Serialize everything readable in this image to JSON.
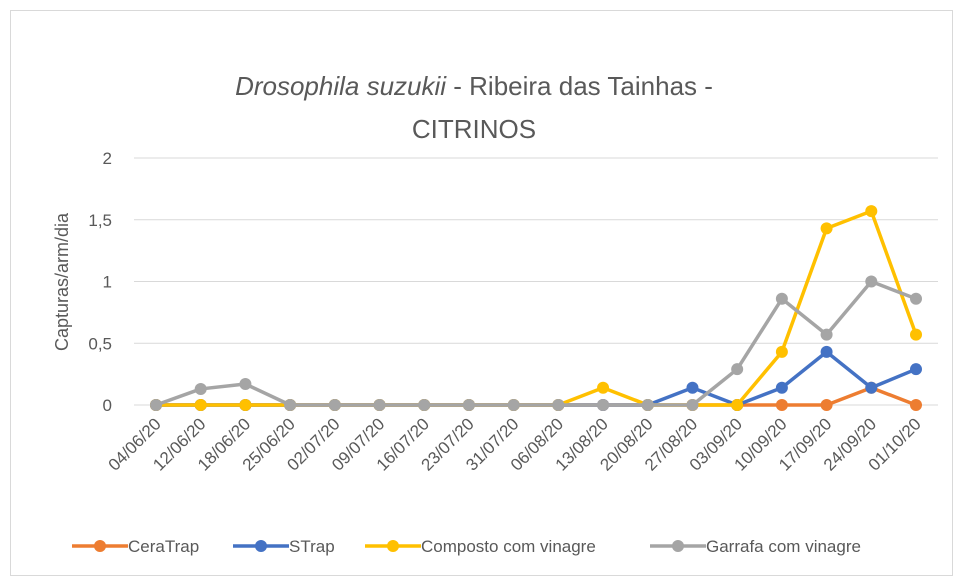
{
  "chart_data": {
    "type": "line",
    "title": [
      "Drosophila suzukii",
      " - Ribeira das Tainhas - ",
      "CITRINOS"
    ],
    "y_label": "Capturas/arm/dia",
    "categories": [
      "04/06/20",
      "12/06/20",
      "18/06/20",
      "25/06/20",
      "02/07/20",
      "09/07/20",
      "16/07/20",
      "23/07/20",
      "31/07/20",
      "06/08/20",
      "13/08/20",
      "20/08/20",
      "27/08/20",
      "03/09/20",
      "10/09/20",
      "17/09/20",
      "24/09/20",
      "01/10/20"
    ],
    "series": [
      {
        "name": "CeraTrap",
        "color": "#ed7d31",
        "values": [
          0,
          0,
          0,
          0,
          0,
          0,
          0,
          0,
          0,
          0,
          0,
          0,
          0,
          0,
          0,
          0,
          0.14,
          0
        ]
      },
      {
        "name": "STrap",
        "color": "#4472c4",
        "values": [
          0,
          0,
          0,
          0,
          0,
          0,
          0,
          0,
          0,
          0,
          0,
          0,
          0.14,
          0,
          0.14,
          0.43,
          0.14,
          0.29
        ]
      },
      {
        "name": "Composto com vinagre",
        "color": "#ffc000",
        "values": [
          0,
          0,
          0,
          0,
          0,
          0,
          0,
          0,
          0,
          0,
          0.14,
          0,
          0,
          0,
          0.43,
          1.43,
          1.57,
          0.57
        ]
      },
      {
        "name": "Garrafa com vinagre",
        "color": "#a5a5a5",
        "values": [
          0,
          0.13,
          0.17,
          0,
          0,
          0,
          0,
          0,
          0,
          0,
          0,
          0,
          0,
          0.29,
          0.86,
          0.57,
          1.0,
          0.86
        ]
      }
    ],
    "ylim": [
      0,
      2
    ],
    "yticks": [
      0,
      {
        "value": 0.5,
        "label": "0,5"
      },
      1,
      {
        "value": 1.5,
        "label": "1,5"
      },
      2
    ],
    "grid": true,
    "legend": "bottom"
  }
}
